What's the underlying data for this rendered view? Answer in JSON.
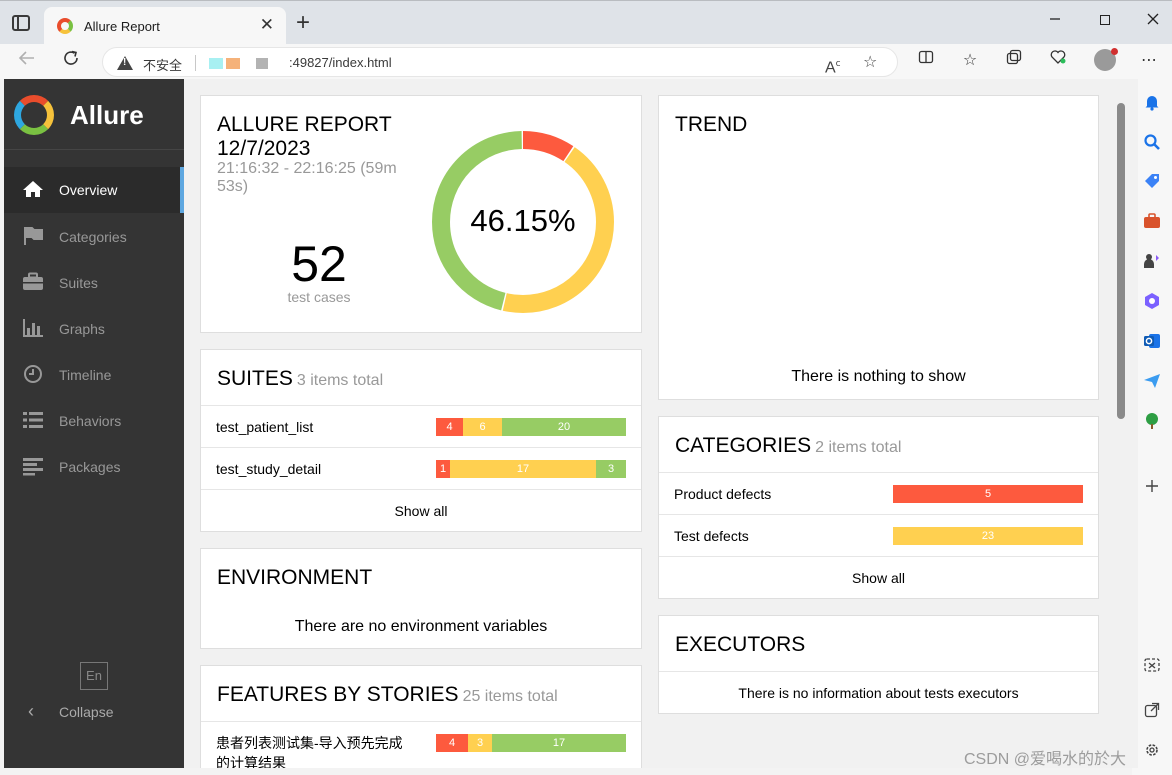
{
  "browser": {
    "tab_title": "Allure Report",
    "tab_close": "✕",
    "new_tab": "+",
    "insecure_label": "不安全",
    "url": ":49827/index.html",
    "url_masked_colors": [
      "#a8f0f2",
      "#f5b27a",
      "#b3b3b3"
    ]
  },
  "sidebar": {
    "brand": "Allure",
    "items": [
      {
        "label": "Overview",
        "icon": "home-icon",
        "active": true
      },
      {
        "label": "Categories",
        "icon": "flag-icon",
        "active": false
      },
      {
        "label": "Suites",
        "icon": "briefcase-icon",
        "active": false
      },
      {
        "label": "Graphs",
        "icon": "bar-chart-icon",
        "active": false
      },
      {
        "label": "Timeline",
        "icon": "clock-icon",
        "active": false
      },
      {
        "label": "Behaviors",
        "icon": "list-icon",
        "active": false
      },
      {
        "label": "Packages",
        "icon": "align-left-icon",
        "active": false
      }
    ],
    "language": "En",
    "collapse_label": "Collapse"
  },
  "overview": {
    "title": "ALLURE REPORT 12/7/2023",
    "time_range": "21:16:32 - 22:16:25 (59m 53s)",
    "test_count": "52",
    "test_count_label": "test cases",
    "success_rate": "46.15%",
    "donut": {
      "failed": 5,
      "broken": 23,
      "passed": 24
    },
    "colors": {
      "failed": "#fd5a3e",
      "broken": "#ffd050",
      "passed": "#97cc64"
    }
  },
  "suites": {
    "title": "SUITES",
    "count": "3 items total",
    "rows": [
      {
        "name": "test_patient_list",
        "failed": 4,
        "broken": 6,
        "passed": 20
      },
      {
        "name": "test_study_detail",
        "failed": 1,
        "broken": 17,
        "passed": 3
      }
    ],
    "show_all": "Show all"
  },
  "environment": {
    "title": "ENVIRONMENT",
    "message": "There are no environment variables"
  },
  "features": {
    "title": "FEATURES BY STORIES",
    "count": "25 items total",
    "rows": [
      {
        "name": "患者列表测试集-导入预先完成的计算结果",
        "failed": 4,
        "broken": 3,
        "passed": 17
      }
    ]
  },
  "trend": {
    "title": "TREND",
    "message": "There is nothing to show"
  },
  "categories": {
    "title": "CATEGORIES",
    "count": "2 items total",
    "rows": [
      {
        "name": "Product defects",
        "value": "5",
        "color": "#fd5a3e"
      },
      {
        "name": "Test defects",
        "value": "23",
        "color": "#ffd050"
      }
    ],
    "show_all": "Show all"
  },
  "executors": {
    "title": "EXECUTORS",
    "message": "There is no information about tests executors"
  },
  "watermark": "CSDN @爱喝水的於大"
}
